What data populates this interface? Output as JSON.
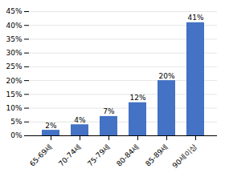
{
  "chart_data": {
    "type": "bar",
    "categories": [
      "65-69세",
      "70-74세",
      "75-79세",
      "80-84세",
      "85-89세",
      "90세이상"
    ],
    "values": [
      2,
      4,
      7,
      12,
      20,
      41
    ],
    "value_labels": [
      "2%",
      "4%",
      "7%",
      "12%",
      "20%",
      "41%"
    ],
    "data_labels": true,
    "color": "#4472C4",
    "ylim": [
      0,
      45
    ],
    "yticks": [
      {
        "value": 0,
        "label": "0%"
      },
      {
        "value": 5,
        "label": "5%"
      },
      {
        "value": 10,
        "label": "10%"
      },
      {
        "value": 15,
        "label": "15%"
      },
      {
        "value": 20,
        "label": "20%"
      },
      {
        "value": 25,
        "label": "25%"
      },
      {
        "value": 30,
        "label": "30%"
      },
      {
        "value": 35,
        "label": "35%"
      },
      {
        "value": 40,
        "label": "40%"
      },
      {
        "value": 45,
        "label": "45%"
      }
    ],
    "grid": true
  }
}
